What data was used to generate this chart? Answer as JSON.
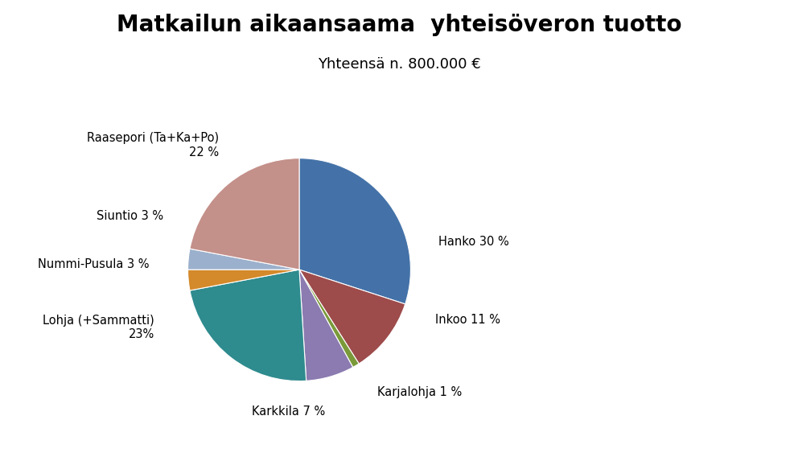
{
  "title": "Matkailun aikaansaama  yhteisöveron tuotto",
  "subtitle": "Yhteensä n. 800.000 €",
  "values": [
    30,
    11,
    1,
    7,
    23,
    3,
    3,
    22
  ],
  "colors": [
    "#4472A8",
    "#9E4B4B",
    "#7A9A3A",
    "#8B7BB0",
    "#2E8B8E",
    "#D4892A",
    "#9BB0CC",
    "#C4908A"
  ],
  "label_texts": [
    "Hanko 30 %",
    "Inkoo 11 %",
    "Karjalohja 1 %",
    "Karkkila 7 %",
    "Lohja (+Sammatti)\n23%",
    "Nummi-Pusula 3 %",
    "Siuntio 3 %",
    "Raasepori (Ta+Ka+Po)\n22 %"
  ],
  "background_color": "#FFFFFF",
  "title_fontsize": 20,
  "subtitle_fontsize": 13,
  "label_fontsize": 10.5,
  "startangle": 90
}
